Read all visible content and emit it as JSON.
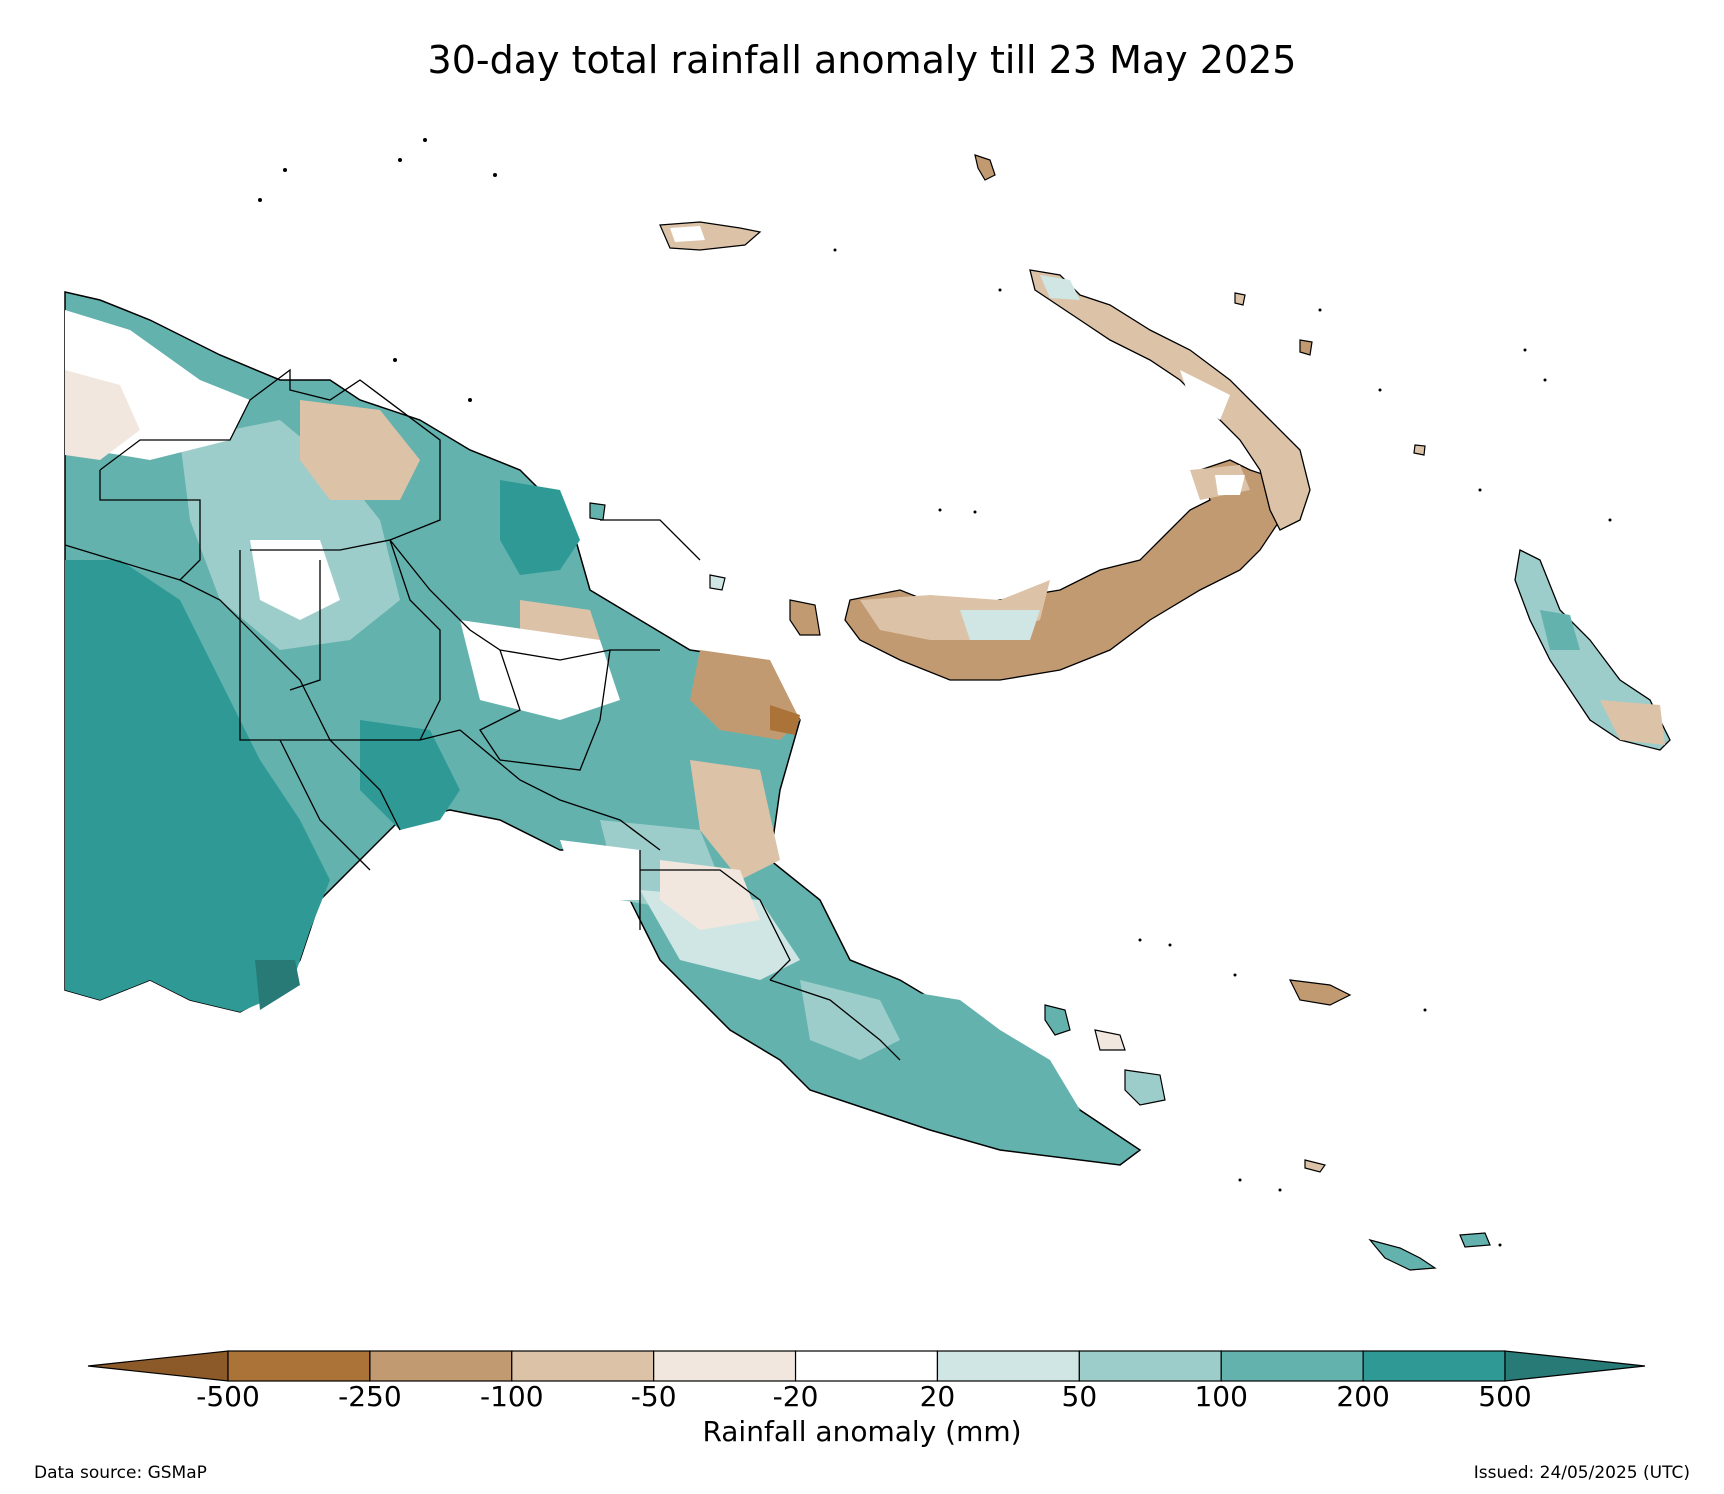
{
  "title": "30-day total rainfall anomaly till 23 May 2025",
  "colorbar": {
    "label": "Rainfall anomaly (mm)",
    "ticks": [
      "-500",
      "-250",
      "-100",
      "-50",
      "-20",
      "20",
      "50",
      "100",
      "200",
      "500"
    ],
    "colors": [
      "#8c5a28",
      "#ab7338",
      "#c29a72",
      "#dcc3a8",
      "#f1e7de",
      "#ffffff",
      "#cfe6e4",
      "#9ccdca",
      "#63b2ae",
      "#2f9a95",
      "#287a76"
    ]
  },
  "footer": {
    "source": "Data source: GSMaP",
    "issued": "Issued: 24/05/2025 (UTC)"
  },
  "map": {
    "region": "Papua New Guinea",
    "legend_colors": {
      "strong_dry": "#ab7338",
      "dry": "#c29a72",
      "mild_dry": "#dcc3a8",
      "slight_dry": "#f1e7de",
      "neutral": "#ffffff",
      "slight_wet": "#cfe6e4",
      "mild_wet": "#9ccdca",
      "wet": "#63b2ae",
      "very_wet": "#2f9a95",
      "extreme_wet": "#287a76"
    }
  }
}
